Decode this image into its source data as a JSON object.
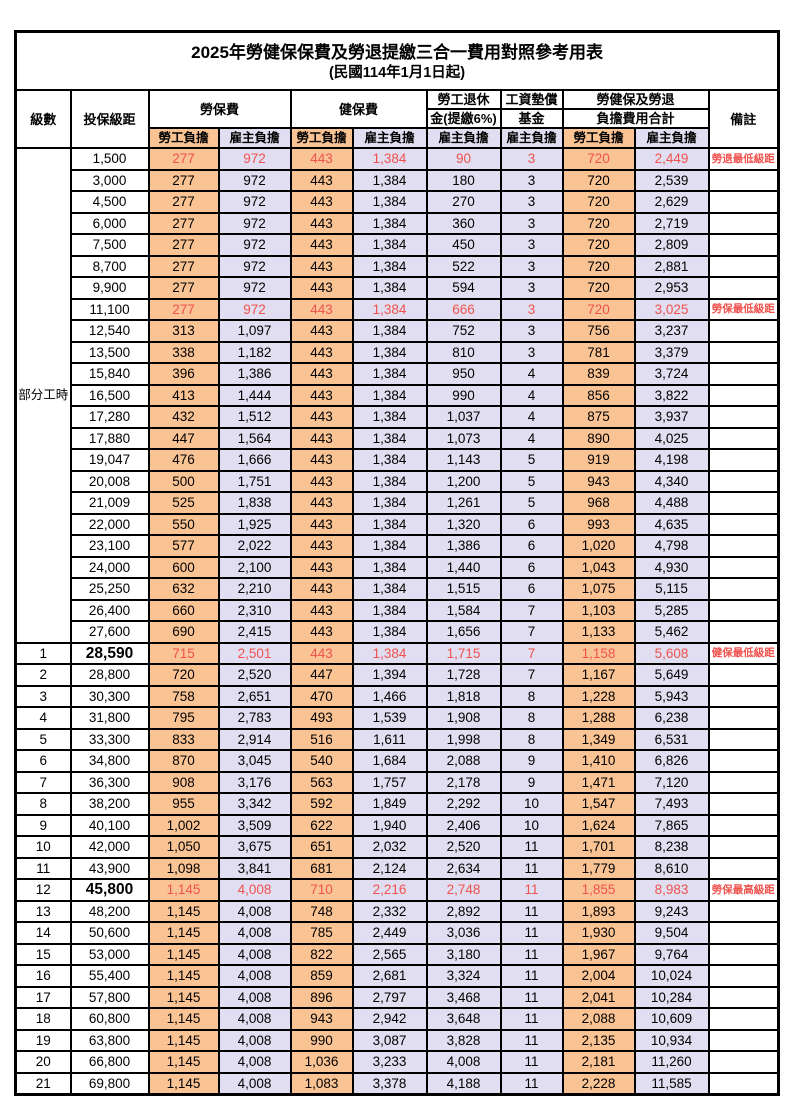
{
  "title": "2025年勞健保保費及勞退提繳三合一費用對照參考用表",
  "subtitle": "(民國114年1月1日起)",
  "colors": {
    "employee_column_bg": "#FAC394",
    "employer_column_bg": "#E0DEF0",
    "highlight_red": "#F0524E",
    "border": "#000000"
  },
  "header": {
    "level": "級數",
    "bracket": "投保級距",
    "labor_insurance": "勞保費",
    "health_insurance": "健保費",
    "pension_line1": "勞工退休",
    "pension_line2": "金(提繳6%)",
    "wage_fund_line1": "工資墊償",
    "wage_fund_line2": "基金",
    "total_line1": "勞健保及勞退",
    "total_line2": "負擔費用合計",
    "remark": "備註",
    "employee": "勞工負擔",
    "employer": "雇主負擔"
  },
  "part_time_label": "部分工時",
  "part_time_rowspan": 23,
  "rows": [
    {
      "level": "",
      "bracket": "1,500",
      "values": [
        "277",
        "972",
        "443",
        "1,384",
        "90",
        "3",
        "720",
        "2,449"
      ],
      "remark": "勞退最低級距",
      "red": true,
      "big": false
    },
    {
      "level": "",
      "bracket": "3,000",
      "values": [
        "277",
        "972",
        "443",
        "1,384",
        "180",
        "3",
        "720",
        "2,539"
      ],
      "remark": "",
      "red": false,
      "big": false
    },
    {
      "level": "",
      "bracket": "4,500",
      "values": [
        "277",
        "972",
        "443",
        "1,384",
        "270",
        "3",
        "720",
        "2,629"
      ],
      "remark": "",
      "red": false,
      "big": false
    },
    {
      "level": "",
      "bracket": "6,000",
      "values": [
        "277",
        "972",
        "443",
        "1,384",
        "360",
        "3",
        "720",
        "2,719"
      ],
      "remark": "",
      "red": false,
      "big": false
    },
    {
      "level": "",
      "bracket": "7,500",
      "values": [
        "277",
        "972",
        "443",
        "1,384",
        "450",
        "3",
        "720",
        "2,809"
      ],
      "remark": "",
      "red": false,
      "big": false
    },
    {
      "level": "",
      "bracket": "8,700",
      "values": [
        "277",
        "972",
        "443",
        "1,384",
        "522",
        "3",
        "720",
        "2,881"
      ],
      "remark": "",
      "red": false,
      "big": false
    },
    {
      "level": "",
      "bracket": "9,900",
      "values": [
        "277",
        "972",
        "443",
        "1,384",
        "594",
        "3",
        "720",
        "2,953"
      ],
      "remark": "",
      "red": false,
      "big": false
    },
    {
      "level": "",
      "bracket": "11,100",
      "values": [
        "277",
        "972",
        "443",
        "1,384",
        "666",
        "3",
        "720",
        "3,025"
      ],
      "remark": "勞保最低級距",
      "red": true,
      "big": false
    },
    {
      "level": "",
      "bracket": "12,540",
      "values": [
        "313",
        "1,097",
        "443",
        "1,384",
        "752",
        "3",
        "756",
        "3,237"
      ],
      "remark": "",
      "red": false,
      "big": false
    },
    {
      "level": "",
      "bracket": "13,500",
      "values": [
        "338",
        "1,182",
        "443",
        "1,384",
        "810",
        "3",
        "781",
        "3,379"
      ],
      "remark": "",
      "red": false,
      "big": false
    },
    {
      "level": "",
      "bracket": "15,840",
      "values": [
        "396",
        "1,386",
        "443",
        "1,384",
        "950",
        "4",
        "839",
        "3,724"
      ],
      "remark": "",
      "red": false,
      "big": false
    },
    {
      "level": "",
      "bracket": "16,500",
      "values": [
        "413",
        "1,444",
        "443",
        "1,384",
        "990",
        "4",
        "856",
        "3,822"
      ],
      "remark": "",
      "red": false,
      "big": false
    },
    {
      "level": "",
      "bracket": "17,280",
      "values": [
        "432",
        "1,512",
        "443",
        "1,384",
        "1,037",
        "4",
        "875",
        "3,937"
      ],
      "remark": "",
      "red": false,
      "big": false
    },
    {
      "level": "",
      "bracket": "17,880",
      "values": [
        "447",
        "1,564",
        "443",
        "1,384",
        "1,073",
        "4",
        "890",
        "4,025"
      ],
      "remark": "",
      "red": false,
      "big": false
    },
    {
      "level": "",
      "bracket": "19,047",
      "values": [
        "476",
        "1,666",
        "443",
        "1,384",
        "1,143",
        "5",
        "919",
        "4,198"
      ],
      "remark": "",
      "red": false,
      "big": false
    },
    {
      "level": "",
      "bracket": "20,008",
      "values": [
        "500",
        "1,751",
        "443",
        "1,384",
        "1,200",
        "5",
        "943",
        "4,340"
      ],
      "remark": "",
      "red": false,
      "big": false
    },
    {
      "level": "",
      "bracket": "21,009",
      "values": [
        "525",
        "1,838",
        "443",
        "1,384",
        "1,261",
        "5",
        "968",
        "4,488"
      ],
      "remark": "",
      "red": false,
      "big": false
    },
    {
      "level": "",
      "bracket": "22,000",
      "values": [
        "550",
        "1,925",
        "443",
        "1,384",
        "1,320",
        "6",
        "993",
        "4,635"
      ],
      "remark": "",
      "red": false,
      "big": false
    },
    {
      "level": "",
      "bracket": "23,100",
      "values": [
        "577",
        "2,022",
        "443",
        "1,384",
        "1,386",
        "6",
        "1,020",
        "4,798"
      ],
      "remark": "",
      "red": false,
      "big": false
    },
    {
      "level": "",
      "bracket": "24,000",
      "values": [
        "600",
        "2,100",
        "443",
        "1,384",
        "1,440",
        "6",
        "1,043",
        "4,930"
      ],
      "remark": "",
      "red": false,
      "big": false
    },
    {
      "level": "",
      "bracket": "25,250",
      "values": [
        "632",
        "2,210",
        "443",
        "1,384",
        "1,515",
        "6",
        "1,075",
        "5,115"
      ],
      "remark": "",
      "red": false,
      "big": false
    },
    {
      "level": "",
      "bracket": "26,400",
      "values": [
        "660",
        "2,310",
        "443",
        "1,384",
        "1,584",
        "7",
        "1,103",
        "5,285"
      ],
      "remark": "",
      "red": false,
      "big": false
    },
    {
      "level": "",
      "bracket": "27,600",
      "values": [
        "690",
        "2,415",
        "443",
        "1,384",
        "1,656",
        "7",
        "1,133",
        "5,462"
      ],
      "remark": "",
      "red": false,
      "big": false
    },
    {
      "level": "1",
      "bracket": "28,590",
      "values": [
        "715",
        "2,501",
        "443",
        "1,384",
        "1,715",
        "7",
        "1,158",
        "5,608"
      ],
      "remark": "健保最低級距",
      "red": true,
      "big": true
    },
    {
      "level": "2",
      "bracket": "28,800",
      "values": [
        "720",
        "2,520",
        "447",
        "1,394",
        "1,728",
        "7",
        "1,167",
        "5,649"
      ],
      "remark": "",
      "red": false,
      "big": false
    },
    {
      "level": "3",
      "bracket": "30,300",
      "values": [
        "758",
        "2,651",
        "470",
        "1,466",
        "1,818",
        "8",
        "1,228",
        "5,943"
      ],
      "remark": "",
      "red": false,
      "big": false
    },
    {
      "level": "4",
      "bracket": "31,800",
      "values": [
        "795",
        "2,783",
        "493",
        "1,539",
        "1,908",
        "8",
        "1,288",
        "6,238"
      ],
      "remark": "",
      "red": false,
      "big": false
    },
    {
      "level": "5",
      "bracket": "33,300",
      "values": [
        "833",
        "2,914",
        "516",
        "1,611",
        "1,998",
        "8",
        "1,349",
        "6,531"
      ],
      "remark": "",
      "red": false,
      "big": false
    },
    {
      "level": "6",
      "bracket": "34,800",
      "values": [
        "870",
        "3,045",
        "540",
        "1,684",
        "2,088",
        "9",
        "1,410",
        "6,826"
      ],
      "remark": "",
      "red": false,
      "big": false
    },
    {
      "level": "7",
      "bracket": "36,300",
      "values": [
        "908",
        "3,176",
        "563",
        "1,757",
        "2,178",
        "9",
        "1,471",
        "7,120"
      ],
      "remark": "",
      "red": false,
      "big": false
    },
    {
      "level": "8",
      "bracket": "38,200",
      "values": [
        "955",
        "3,342",
        "592",
        "1,849",
        "2,292",
        "10",
        "1,547",
        "7,493"
      ],
      "remark": "",
      "red": false,
      "big": false
    },
    {
      "level": "9",
      "bracket": "40,100",
      "values": [
        "1,002",
        "3,509",
        "622",
        "1,940",
        "2,406",
        "10",
        "1,624",
        "7,865"
      ],
      "remark": "",
      "red": false,
      "big": false
    },
    {
      "level": "10",
      "bracket": "42,000",
      "values": [
        "1,050",
        "3,675",
        "651",
        "2,032",
        "2,520",
        "11",
        "1,701",
        "8,238"
      ],
      "remark": "",
      "red": false,
      "big": false
    },
    {
      "level": "11",
      "bracket": "43,900",
      "values": [
        "1,098",
        "3,841",
        "681",
        "2,124",
        "2,634",
        "11",
        "1,779",
        "8,610"
      ],
      "remark": "",
      "red": false,
      "big": false
    },
    {
      "level": "12",
      "bracket": "45,800",
      "values": [
        "1,145",
        "4,008",
        "710",
        "2,216",
        "2,748",
        "11",
        "1,855",
        "8,983"
      ],
      "remark": "勞保最高級距",
      "red": true,
      "big": true
    },
    {
      "level": "13",
      "bracket": "48,200",
      "values": [
        "1,145",
        "4,008",
        "748",
        "2,332",
        "2,892",
        "11",
        "1,893",
        "9,243"
      ],
      "remark": "",
      "red": false,
      "big": false
    },
    {
      "level": "14",
      "bracket": "50,600",
      "values": [
        "1,145",
        "4,008",
        "785",
        "2,449",
        "3,036",
        "11",
        "1,930",
        "9,504"
      ],
      "remark": "",
      "red": false,
      "big": false
    },
    {
      "level": "15",
      "bracket": "53,000",
      "values": [
        "1,145",
        "4,008",
        "822",
        "2,565",
        "3,180",
        "11",
        "1,967",
        "9,764"
      ],
      "remark": "",
      "red": false,
      "big": false
    },
    {
      "level": "16",
      "bracket": "55,400",
      "values": [
        "1,145",
        "4,008",
        "859",
        "2,681",
        "3,324",
        "11",
        "2,004",
        "10,024"
      ],
      "remark": "",
      "red": false,
      "big": false
    },
    {
      "level": "17",
      "bracket": "57,800",
      "values": [
        "1,145",
        "4,008",
        "896",
        "2,797",
        "3,468",
        "11",
        "2,041",
        "10,284"
      ],
      "remark": "",
      "red": false,
      "big": false
    },
    {
      "level": "18",
      "bracket": "60,800",
      "values": [
        "1,145",
        "4,008",
        "943",
        "2,942",
        "3,648",
        "11",
        "2,088",
        "10,609"
      ],
      "remark": "",
      "red": false,
      "big": false
    },
    {
      "level": "19",
      "bracket": "63,800",
      "values": [
        "1,145",
        "4,008",
        "990",
        "3,087",
        "3,828",
        "11",
        "2,135",
        "10,934"
      ],
      "remark": "",
      "red": false,
      "big": false
    },
    {
      "level": "20",
      "bracket": "66,800",
      "values": [
        "1,145",
        "4,008",
        "1,036",
        "3,233",
        "4,008",
        "11",
        "2,181",
        "11,260"
      ],
      "remark": "",
      "red": false,
      "big": false
    },
    {
      "level": "21",
      "bracket": "69,800",
      "values": [
        "1,145",
        "4,008",
        "1,083",
        "3,378",
        "4,188",
        "11",
        "2,228",
        "11,585"
      ],
      "remark": "",
      "red": false,
      "big": false
    }
  ]
}
